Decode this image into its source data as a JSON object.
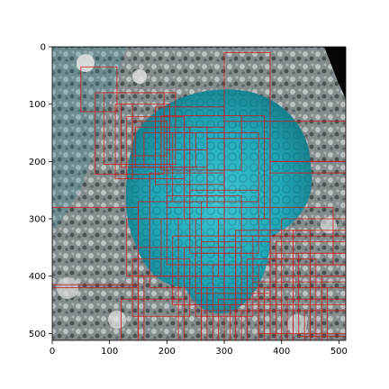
{
  "figure": {
    "x_ticks": [
      "0",
      "100",
      "200",
      "300",
      "400",
      "500"
    ],
    "y_ticks": [
      "0",
      "100",
      "200",
      "300",
      "400",
      "500"
    ],
    "image_description_icon": "lichen-on-rock-photo",
    "colors": {
      "box_stroke": "#cc1f1f",
      "lichen": "#2fb8c8",
      "rock_light": "#b9bdbf",
      "rock_dark": "#4a5052",
      "corner": "#050505"
    }
  },
  "chart_data": {
    "type": "scatter",
    "xlim": [
      0,
      512
    ],
    "ylim": [
      512,
      0
    ],
    "x_ticks": [
      0,
      100,
      200,
      300,
      400,
      500
    ],
    "y_ticks": [
      0,
      100,
      200,
      300,
      400,
      500
    ],
    "grid": false,
    "boxes": [
      [
        50,
        35,
        113,
        113
      ],
      [
        75,
        80,
        195,
        222
      ],
      [
        90,
        80,
        215,
        205
      ],
      [
        110,
        100,
        140,
        230
      ],
      [
        120,
        100,
        205,
        210
      ],
      [
        130,
        122,
        230,
        230
      ],
      [
        140,
        130,
        200,
        190
      ],
      [
        145,
        140,
        270,
        210
      ],
      [
        160,
        150,
        250,
        210
      ],
      [
        180,
        105,
        300,
        240
      ],
      [
        190,
        120,
        330,
        215
      ],
      [
        200,
        180,
        270,
        280
      ],
      [
        210,
        150,
        360,
        270
      ],
      [
        230,
        120,
        370,
        300
      ],
      [
        240,
        140,
        300,
        260
      ],
      [
        270,
        160,
        380,
        280
      ],
      [
        300,
        10,
        380,
        130
      ],
      [
        380,
        130,
        512,
        200
      ],
      [
        380,
        200,
        512,
        220
      ],
      [
        380,
        200,
        512,
        360
      ],
      [
        400,
        300,
        512,
        420
      ],
      [
        420,
        320,
        512,
        460
      ],
      [
        430,
        360,
        512,
        505
      ],
      [
        450,
        380,
        512,
        512
      ],
      [
        470,
        400,
        512,
        512
      ],
      [
        0,
        280,
        150,
        420
      ],
      [
        0,
        415,
        150,
        512
      ],
      [
        130,
        300,
        220,
        400
      ],
      [
        150,
        270,
        260,
        400
      ],
      [
        150,
        350,
        320,
        512
      ],
      [
        170,
        220,
        300,
        420
      ],
      [
        190,
        300,
        290,
        400
      ],
      [
        200,
        260,
        330,
        380
      ],
      [
        210,
        330,
        320,
        450
      ],
      [
        220,
        380,
        340,
        512
      ],
      [
        240,
        250,
        360,
        360
      ],
      [
        250,
        300,
        380,
        430
      ],
      [
        260,
        340,
        380,
        460
      ],
      [
        280,
        380,
        390,
        512
      ],
      [
        300,
        330,
        420,
        512
      ],
      [
        320,
        320,
        450,
        512
      ],
      [
        340,
        370,
        460,
        512
      ],
      [
        350,
        330,
        512,
        410
      ],
      [
        360,
        380,
        512,
        500
      ],
      [
        370,
        420,
        480,
        512
      ],
      [
        380,
        280,
        490,
        380
      ],
      [
        390,
        340,
        512,
        450
      ],
      [
        400,
        400,
        512,
        512
      ],
      [
        410,
        440,
        512,
        512
      ],
      [
        420,
        460,
        512,
        512
      ],
      [
        230,
        350,
        330,
        450
      ],
      [
        250,
        360,
        350,
        470
      ],
      [
        260,
        400,
        360,
        512
      ],
      [
        270,
        420,
        380,
        512
      ],
      [
        290,
        440,
        400,
        512
      ],
      [
        310,
        450,
        420,
        512
      ],
      [
        330,
        460,
        440,
        512
      ],
      [
        140,
        370,
        240,
        470
      ],
      [
        160,
        400,
        260,
        512
      ],
      [
        120,
        440,
        230,
        512
      ]
    ]
  }
}
